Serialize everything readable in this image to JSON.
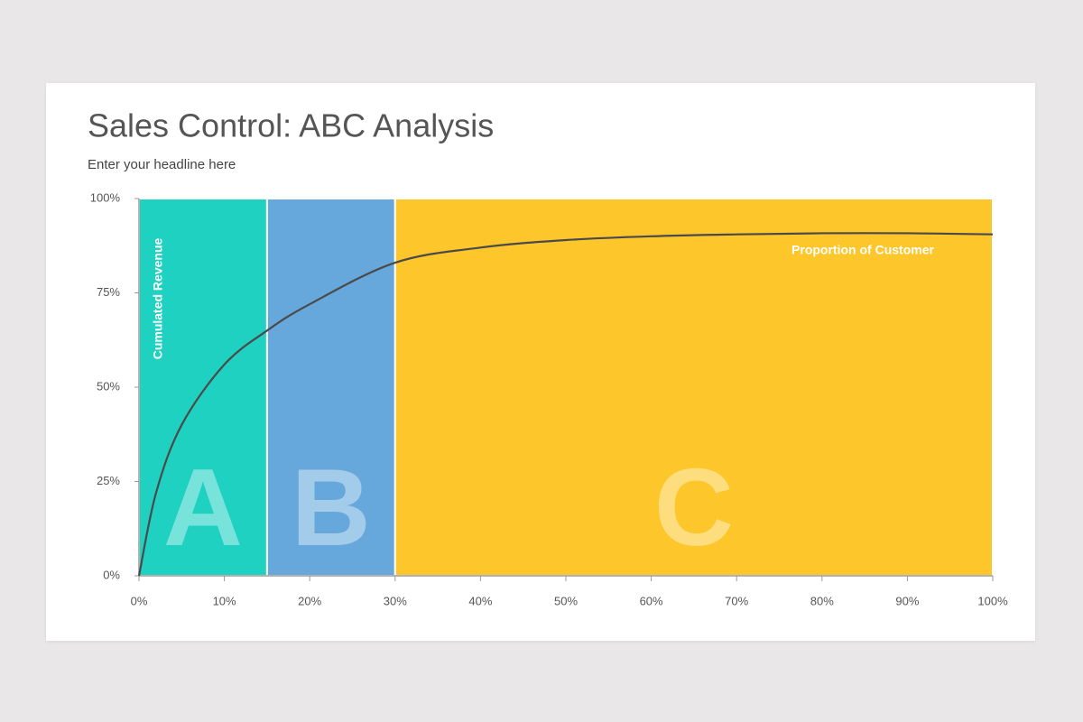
{
  "chart_data": {
    "type": "line",
    "title": "Sales Control: ABC Analysis",
    "subtitle": "Enter your headline here",
    "y_label": "Cumulated Revenue",
    "x_label": "Proportion of Customer",
    "x": [
      0,
      2,
      5,
      10,
      15,
      20,
      30,
      40,
      50,
      60,
      70,
      80,
      90,
      100
    ],
    "values": [
      0,
      22,
      40,
      56,
      65,
      72,
      83,
      87,
      89,
      90,
      90.5,
      90.8,
      90.8,
      90.5
    ],
    "line_color": "#4a4a4a",
    "regions": [
      {
        "label": "A",
        "start": 0,
        "end": 15,
        "color": "#1fd1c1"
      },
      {
        "label": "B",
        "start": 15,
        "end": 30,
        "color": "#66a8dc"
      },
      {
        "label": "C",
        "start": 30,
        "end": 100,
        "color": "#fdc62b"
      }
    ],
    "xlim": [
      0,
      100
    ],
    "ylim": [
      0,
      100
    ],
    "xticks": [
      {
        "value": 0,
        "label": "0%"
      },
      {
        "value": 10,
        "label": "10%"
      },
      {
        "value": 20,
        "label": "20%"
      },
      {
        "value": 30,
        "label": "30%"
      },
      {
        "value": 40,
        "label": "40%"
      },
      {
        "value": 50,
        "label": "50%"
      },
      {
        "value": 60,
        "label": "60%"
      },
      {
        "value": 70,
        "label": "70%"
      },
      {
        "value": 80,
        "label": "80%"
      },
      {
        "value": 90,
        "label": "90%"
      },
      {
        "value": 100,
        "label": "100%"
      }
    ],
    "yticks": [
      {
        "value": 0,
        "label": "0%"
      },
      {
        "value": 25,
        "label": "25%"
      },
      {
        "value": 50,
        "label": "50%"
      },
      {
        "value": 75,
        "label": "75%"
      },
      {
        "value": 100,
        "label": "100%"
      }
    ],
    "grid": false
  }
}
